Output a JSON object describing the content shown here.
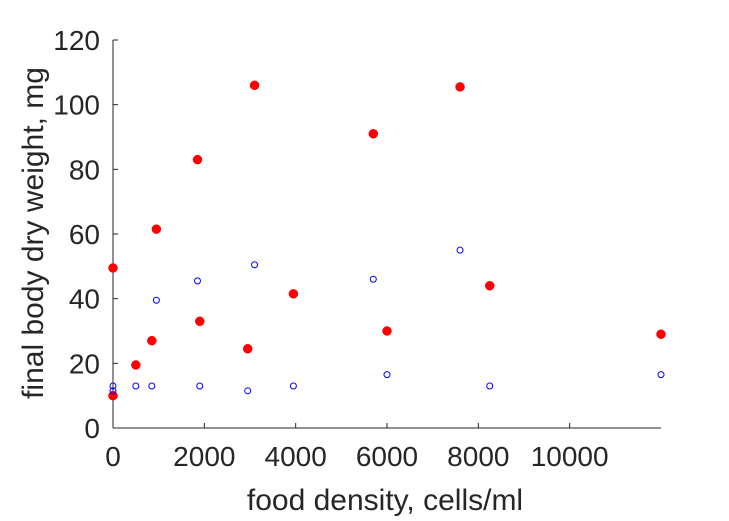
{
  "chart_data": {
    "type": "scatter",
    "xlabel": "food density, cells/ml",
    "ylabel": "final body dry weight, mg",
    "xlim": [
      0,
      12000
    ],
    "ylim": [
      0,
      120
    ],
    "xticks": [
      0,
      2000,
      4000,
      6000,
      8000,
      10000
    ],
    "yticks": [
      0,
      20,
      40,
      60,
      80,
      100,
      120
    ],
    "grid": false,
    "legend": "none",
    "series": [
      {
        "marker": "filled-circle",
        "color": "#ff0000",
        "points": [
          [
            0,
            49.5
          ],
          [
            0,
            10
          ],
          [
            500,
            19.5
          ],
          [
            850,
            27
          ],
          [
            950,
            61.5
          ],
          [
            1850,
            83
          ],
          [
            1900,
            33
          ],
          [
            2950,
            24.5
          ],
          [
            3100,
            106
          ],
          [
            3950,
            41.5
          ],
          [
            5700,
            91
          ],
          [
            6000,
            30
          ],
          [
            7600,
            105.5
          ],
          [
            8250,
            44
          ],
          [
            12000,
            29
          ]
        ]
      },
      {
        "marker": "open-circle",
        "color": "#0000ff",
        "points": [
          [
            0,
            13
          ],
          [
            0,
            11.5
          ],
          [
            500,
            13
          ],
          [
            850,
            13
          ],
          [
            950,
            39.5
          ],
          [
            1850,
            45.5
          ],
          [
            1900,
            13
          ],
          [
            2950,
            11.5
          ],
          [
            3100,
            50.5
          ],
          [
            3950,
            13
          ],
          [
            5700,
            46
          ],
          [
            6000,
            16.5
          ],
          [
            7600,
            55
          ],
          [
            8250,
            13
          ],
          [
            12000,
            16.5
          ]
        ]
      }
    ]
  }
}
